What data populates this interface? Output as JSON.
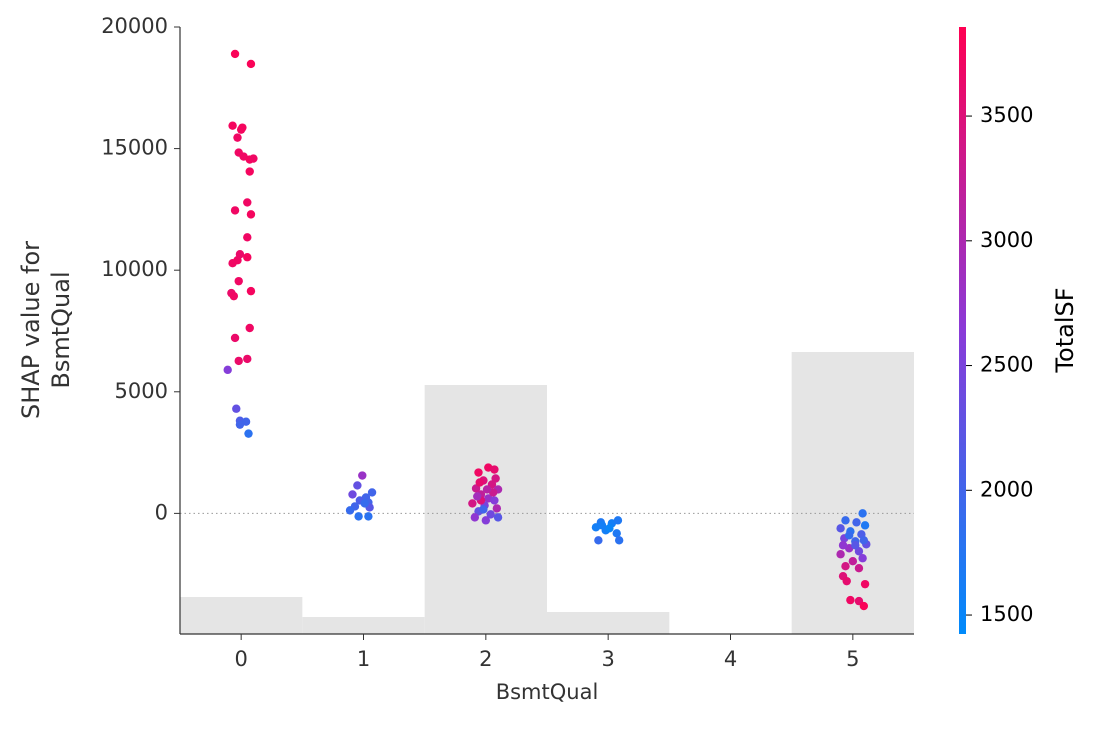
{
  "chart_data": {
    "type": "scatter",
    "xlabel": "BsmtQual",
    "ylabel": [
      "SHAP value for",
      "BsmtQual"
    ],
    "colorbar_label": "TotalSF",
    "xlim": [
      -0.5,
      5.5
    ],
    "xticks": [
      0,
      1,
      2,
      3,
      4,
      5
    ],
    "ylim": [
      -4960,
      20000
    ],
    "yticks": [
      0,
      5000,
      10000,
      15000,
      20000
    ],
    "clim": [
      1424,
      3857
    ],
    "cticks": [
      1500,
      2000,
      2500,
      3000,
      3500
    ],
    "colormap": [
      "#008bfb",
      "#8a3ad8",
      "#ff0052"
    ],
    "hline": 0,
    "histogram": {
      "bins": [
        -0.5,
        0.5,
        1.5,
        2.5,
        3.5,
        4.5,
        5.5
      ],
      "counts": [
        37,
        17,
        249,
        22,
        0,
        282
      ],
      "ylim": [
        0,
        607
      ],
      "color": "#e5e5e5"
    },
    "x": [
      -0.05,
      0.08,
      -0.07,
      0.01,
      -0.03,
      0,
      -0.02,
      0.02,
      0.07,
      0.1,
      0.07,
      0.05,
      0.08,
      -0.05,
      0.05,
      -0.03,
      0.05,
      -0.01,
      -0.07,
      -0.02,
      0.08,
      -0.08,
      -0.06,
      0.07,
      -0.05,
      -0.02,
      0.05,
      -0.11,
      -0.04,
      -0.01,
      0.04,
      -0.01,
      0.06,
      0.99,
      0.95,
      0.91,
      1.07,
      1.02,
      0.97,
      1.04,
      0.93,
      0.89,
      1.05,
      0.96,
      1.04,
      1.01,
      2.02,
      1.94,
      2.07,
      1.98,
      2.05,
      1.92,
      2.1,
      1.96,
      2.02,
      2.07,
      1.89,
      1.99,
      2.09,
      1.94,
      2.04,
      1.91,
      2.1,
      2,
      1.96,
      2.06,
      1.93,
      2.01,
      1.95,
      2.08,
      1.98,
      2.94,
      3.03,
      3.08,
      2.9,
      2.98,
      3.07,
      2.92,
      3.09,
      3.01,
      2.95,
      5.08,
      4.94,
      5.03,
      5.1,
      4.9,
      4.98,
      5.07,
      4.93,
      5.02,
      5.11,
      4.97,
      5.05,
      4.9,
      5.08,
      5,
      4.94,
      5.05,
      4.92,
      5.1,
      4.98,
      5.05,
      5.09,
      4.95,
      5.02,
      4.97,
      5.09,
      4.92
    ],
    "y": [
      18893,
      18480,
      15943,
      15861,
      15451,
      15779,
      14836,
      14672,
      14549,
      14590,
      14057,
      12787,
      12295,
      12459,
      11352,
      10410,
      10533,
      10656,
      10287,
      9549,
      9139,
      9057,
      8934,
      7623,
      7213,
      6270,
      6352,
      5902,
      4303,
      3811,
      3770,
      3647,
      3279,
      1557,
      1148,
      779,
      861,
      656,
      533,
      451,
      287,
      123,
      246,
      -123,
      -123,
      410,
      1885,
      1680,
      1803,
      1352,
      1189,
      1025,
      984,
      779,
      615,
      533,
      410,
      328,
      205,
      82,
      -41,
      -164,
      -164,
      -287,
      533,
      861,
      697,
      984,
      1270,
      1434,
      164,
      -369,
      -410,
      -287,
      -574,
      -697,
      -820,
      -1107,
      -1107,
      -615,
      -492,
      0,
      -287,
      -369,
      -492,
      -615,
      -738,
      -861,
      -1025,
      -1148,
      -1270,
      -1434,
      -1557,
      -1680,
      -1844,
      -1967,
      -2172,
      -2254,
      -2582,
      -2910,
      -3566,
      -3607,
      -3811,
      -2787,
      -1311,
      -902,
      -1107,
      -1311
    ],
    "c": [
      3800,
      3800,
      3750,
      3750,
      3700,
      3750,
      3700,
      3700,
      3750,
      3700,
      3750,
      3700,
      3750,
      3700,
      3700,
      3700,
      3750,
      3650,
      3700,
      3700,
      3750,
      3650,
      3700,
      3700,
      3650,
      3650,
      3650,
      2600,
      2300,
      2100,
      2000,
      2000,
      1800,
      2800,
      2300,
      2400,
      2000,
      2000,
      2100,
      2000,
      2000,
      1900,
      2200,
      1800,
      1800,
      1900,
      3700,
      3700,
      3600,
      3500,
      3400,
      3300,
      3000,
      3200,
      2800,
      2600,
      3400,
      2500,
      3000,
      2300,
      2400,
      2700,
      2200,
      2600,
      3500,
      3300,
      2900,
      3100,
      3600,
      3400,
      2000,
      1700,
      1600,
      1700,
      1600,
      1600,
      1700,
      1900,
      1800,
      1500,
      1600,
      1800,
      1900,
      2000,
      1700,
      2200,
      1800,
      2100,
      2500,
      2000,
      2300,
      2800,
      2400,
      3000,
      2600,
      3200,
      3400,
      3300,
      3500,
      3700,
      3700,
      3600,
      3800,
      3600,
      2200,
      1900,
      2000,
      2700
    ]
  }
}
